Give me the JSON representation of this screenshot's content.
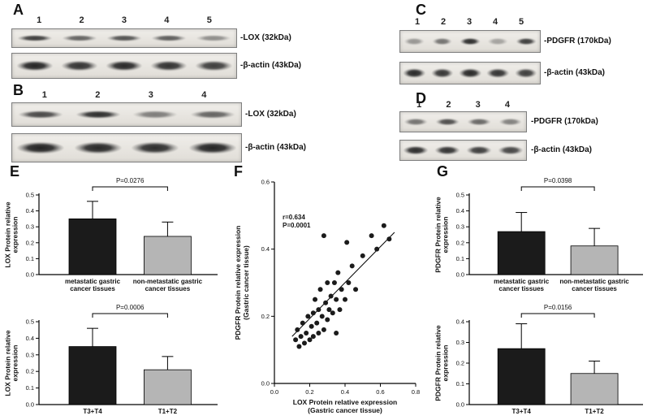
{
  "figure": {
    "panels": {
      "A": {
        "label": "A",
        "lanes": [
          "1",
          "2",
          "3",
          "4",
          "5"
        ],
        "blots": [
          {
            "label": "-LOX (32kDa)",
            "bands": [
              0.8,
              0.62,
              0.7,
              0.65,
              0.42
            ],
            "band_height": 8,
            "band_width": 0.78
          },
          {
            "label": "-β-actin (43kDa)",
            "bands": [
              0.92,
              0.85,
              0.9,
              0.86,
              0.8
            ],
            "band_height": 13,
            "band_width": 0.82
          }
        ]
      },
      "B": {
        "label": "B",
        "lanes": [
          "1",
          "2",
          "3",
          "4"
        ],
        "blots": [
          {
            "label": "-LOX (32kDa)",
            "bands": [
              0.75,
              0.88,
              0.5,
              0.62
            ],
            "band_height": 10,
            "band_width": 0.78
          },
          {
            "label": "-β-actin (43kDa)",
            "bands": [
              0.93,
              0.9,
              0.88,
              0.92
            ],
            "band_height": 15,
            "band_width": 0.84
          }
        ]
      },
      "C": {
        "label": "C",
        "lanes": [
          "1",
          "2",
          "3",
          "4",
          "5"
        ],
        "blots": [
          {
            "label": "-PDGFR (170kDa)",
            "bands": [
              0.38,
              0.55,
              0.88,
              0.32,
              0.8
            ],
            "band_height": 9,
            "band_width": 0.72
          },
          {
            "label": "-β-actin (43kDa)",
            "bands": [
              0.9,
              0.84,
              0.9,
              0.85,
              0.8
            ],
            "band_height": 12,
            "band_width": 0.8
          }
        ]
      },
      "D": {
        "label": "D",
        "lanes": [
          "1",
          "2",
          "3",
          "4"
        ],
        "blots": [
          {
            "label": "-PDGFR (170kDa)",
            "bands": [
              0.55,
              0.72,
              0.6,
              0.48
            ],
            "band_height": 9,
            "band_width": 0.74
          },
          {
            "label": "-β-actin (43kDa)",
            "bands": [
              0.88,
              0.85,
              0.8,
              0.76
            ],
            "band_height": 11,
            "band_width": 0.8
          }
        ]
      },
      "E": {
        "label": "E"
      },
      "F": {
        "label": "F"
      },
      "G": {
        "label": "G"
      }
    }
  },
  "chart_data": [
    {
      "id": "panel-E-top",
      "type": "bar",
      "panel": "E",
      "categories": [
        "metastatic gastric\ncancer tissues",
        "non-metastatic gastric\ncancer tissues"
      ],
      "values": [
        0.35,
        0.24
      ],
      "errors": [
        0.11,
        0.09
      ],
      "p_label": "P=0.0276",
      "ylabel": "LOX Protein relative\nexpression",
      "ylim": [
        0,
        0.5
      ],
      "yticks": [
        0,
        0.1,
        0.2,
        0.3,
        0.4,
        0.5
      ],
      "bar_colors": [
        "#1b1b1b",
        "#b5b5b5"
      ]
    },
    {
      "id": "panel-E-bottom",
      "type": "bar",
      "panel": "E",
      "categories": [
        "T3+T4",
        "T1+T2"
      ],
      "values": [
        0.35,
        0.21
      ],
      "errors": [
        0.11,
        0.08
      ],
      "p_label": "P=0.0006",
      "ylabel": "LOX Protein relative\nexpression",
      "ylim": [
        0,
        0.5
      ],
      "yticks": [
        0,
        0.1,
        0.2,
        0.3,
        0.4,
        0.5
      ],
      "bar_colors": [
        "#1b1b1b",
        "#b5b5b5"
      ]
    },
    {
      "id": "panel-F",
      "type": "scatter",
      "panel": "F",
      "annotation": "r=0.634\nP=0.0001",
      "xlabel": "LOX Protein relative expression\n(Gastric cancer tissue)",
      "ylabel": "PDGFR Protein relative expression\n(Gastric cancer tissue)",
      "xlim": [
        0,
        0.8
      ],
      "ylim": [
        0,
        0.6
      ],
      "xticks": [
        0,
        0.2,
        0.4,
        0.6,
        0.8
      ],
      "yticks": [
        0,
        0.2,
        0.4,
        0.6
      ],
      "point_color": "#1b1b1b",
      "trend_line": {
        "x": [
          0.1,
          0.68
        ],
        "y": [
          0.14,
          0.45
        ]
      },
      "points": [
        [
          0.12,
          0.13
        ],
        [
          0.13,
          0.16
        ],
        [
          0.14,
          0.11
        ],
        [
          0.15,
          0.14
        ],
        [
          0.16,
          0.18
        ],
        [
          0.17,
          0.12
        ],
        [
          0.18,
          0.15
        ],
        [
          0.19,
          0.2
        ],
        [
          0.2,
          0.13
        ],
        [
          0.21,
          0.17
        ],
        [
          0.22,
          0.21
        ],
        [
          0.22,
          0.14
        ],
        [
          0.23,
          0.25
        ],
        [
          0.24,
          0.18
        ],
        [
          0.25,
          0.22
        ],
        [
          0.25,
          0.15
        ],
        [
          0.26,
          0.28
        ],
        [
          0.27,
          0.2
        ],
        [
          0.28,
          0.16
        ],
        [
          0.28,
          0.44
        ],
        [
          0.29,
          0.24
        ],
        [
          0.3,
          0.19
        ],
        [
          0.3,
          0.3
        ],
        [
          0.31,
          0.22
        ],
        [
          0.32,
          0.26
        ],
        [
          0.33,
          0.21
        ],
        [
          0.34,
          0.3
        ],
        [
          0.35,
          0.25
        ],
        [
          0.35,
          0.15
        ],
        [
          0.36,
          0.33
        ],
        [
          0.37,
          0.22
        ],
        [
          0.38,
          0.28
        ],
        [
          0.4,
          0.25
        ],
        [
          0.41,
          0.42
        ],
        [
          0.42,
          0.3
        ],
        [
          0.44,
          0.35
        ],
        [
          0.46,
          0.28
        ],
        [
          0.5,
          0.38
        ],
        [
          0.55,
          0.44
        ],
        [
          0.58,
          0.4
        ],
        [
          0.62,
          0.47
        ],
        [
          0.65,
          0.43
        ]
      ]
    },
    {
      "id": "panel-G-top",
      "type": "bar",
      "panel": "G",
      "categories": [
        "metastatic gastric\ncancer tissues",
        "non-metastatic gastric\ncancer tissues"
      ],
      "values": [
        0.27,
        0.18
      ],
      "errors": [
        0.12,
        0.11
      ],
      "p_label": "P=0.0398",
      "ylabel": "PDGFR Protein relative\nexpression",
      "ylim": [
        0,
        0.5
      ],
      "yticks": [
        0,
        0.1,
        0.2,
        0.3,
        0.4,
        0.5
      ],
      "bar_colors": [
        "#1b1b1b",
        "#b5b5b5"
      ]
    },
    {
      "id": "panel-G-bottom",
      "type": "bar",
      "panel": "G",
      "categories": [
        "T3+T4",
        "T1+T2"
      ],
      "values": [
        0.27,
        0.15
      ],
      "errors": [
        0.12,
        0.06
      ],
      "p_label": "P=0.0156",
      "ylabel": "PDGFR Protein relative\nexpression",
      "ylim": [
        0,
        0.4
      ],
      "yticks": [
        0,
        0.1,
        0.2,
        0.3,
        0.4
      ],
      "bar_colors": [
        "#1b1b1b",
        "#b5b5b5"
      ]
    }
  ]
}
